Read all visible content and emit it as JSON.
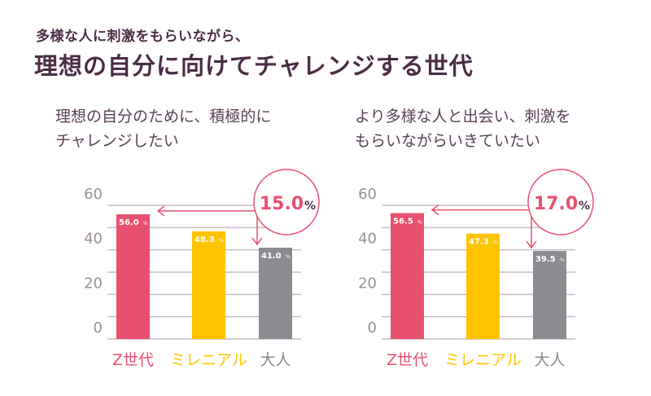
{
  "header": {
    "subtitle": "多様な人に刺激をもらいながら、",
    "title": "理想の自分に向けてチャレンジする世代"
  },
  "colors": {
    "z": "#e85070",
    "millennial": "#ffc400",
    "adult": "#8a8c91",
    "accent": "#e85070",
    "grid": "#c9bcc6",
    "text": "#4a2d45"
  },
  "chart_data": [
    {
      "type": "bar",
      "title": "理想の自分のために、積極的に\nチャレンジしたい",
      "categories": [
        "Z世代",
        "ミレニアル",
        "大人"
      ],
      "values": [
        56.0,
        48.3,
        41.0
      ],
      "value_labels": [
        "56.0",
        "48.3",
        "41.0"
      ],
      "unit": "%",
      "ylim": [
        0,
        60
      ],
      "yticks": [
        "0",
        "20",
        "40",
        "60"
      ],
      "grid": true,
      "gap_label": "15.0",
      "gap_unit": "%"
    },
    {
      "type": "bar",
      "title": "より多様な人と出会い、刺激を\nもらいながらいきていたい",
      "categories": [
        "Z世代",
        "ミレニアル",
        "大人"
      ],
      "values": [
        56.5,
        47.3,
        39.5
      ],
      "value_labels": [
        "56.5",
        "47.3",
        "39.5"
      ],
      "unit": "%",
      "ylim": [
        0,
        60
      ],
      "yticks": [
        "0",
        "20",
        "40",
        "60"
      ],
      "grid": true,
      "gap_label": "17.0",
      "gap_unit": "%"
    }
  ]
}
